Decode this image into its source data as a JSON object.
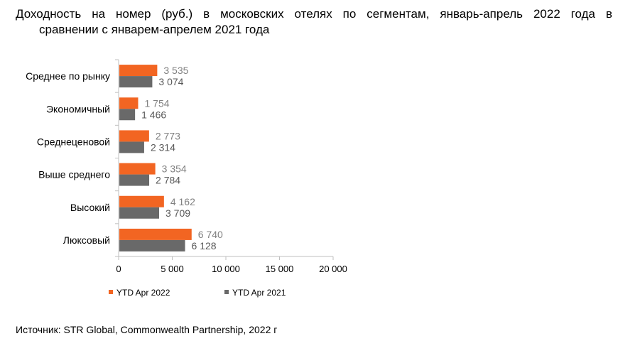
{
  "title_line1": "Доходность на номер (руб.) в московских отелях по сегментам, январь-апрель 2022 года в",
  "title_line2": "сравнении с январем-апрелем 2021 года",
  "source": "Источник: STR Global, Commonwealth Partnership, 2022 г",
  "chart_data": {
    "type": "bar",
    "orientation": "horizontal",
    "categories": [
      "Среднее по рынку",
      "Экономичный",
      "Среднеценовой",
      "Выше среднего",
      "Высокий",
      "Люксовый"
    ],
    "series": [
      {
        "name": "YTD Apr 2022",
        "values": [
          3535,
          1754,
          2773,
          3354,
          4162,
          6740
        ],
        "labels": [
          "3 535",
          "1 754",
          "2 773",
          "3 354",
          "4 162",
          "6 740"
        ],
        "color": "#F26522"
      },
      {
        "name": "YTD Apr 2021",
        "values": [
          3074,
          1466,
          2314,
          2784,
          3709,
          6128
        ],
        "labels": [
          "3 074",
          "1 466",
          "2 314",
          "2 784",
          "3 709",
          "6 128"
        ],
        "color": "#696969"
      }
    ],
    "xlim": [
      0,
      20000
    ],
    "xticks": [
      0,
      5000,
      10000,
      15000,
      20000
    ],
    "xtick_labels": [
      "0",
      "5 000",
      "10 000",
      "15 000",
      "20 000"
    ],
    "grid": false,
    "legend": "bottom"
  }
}
